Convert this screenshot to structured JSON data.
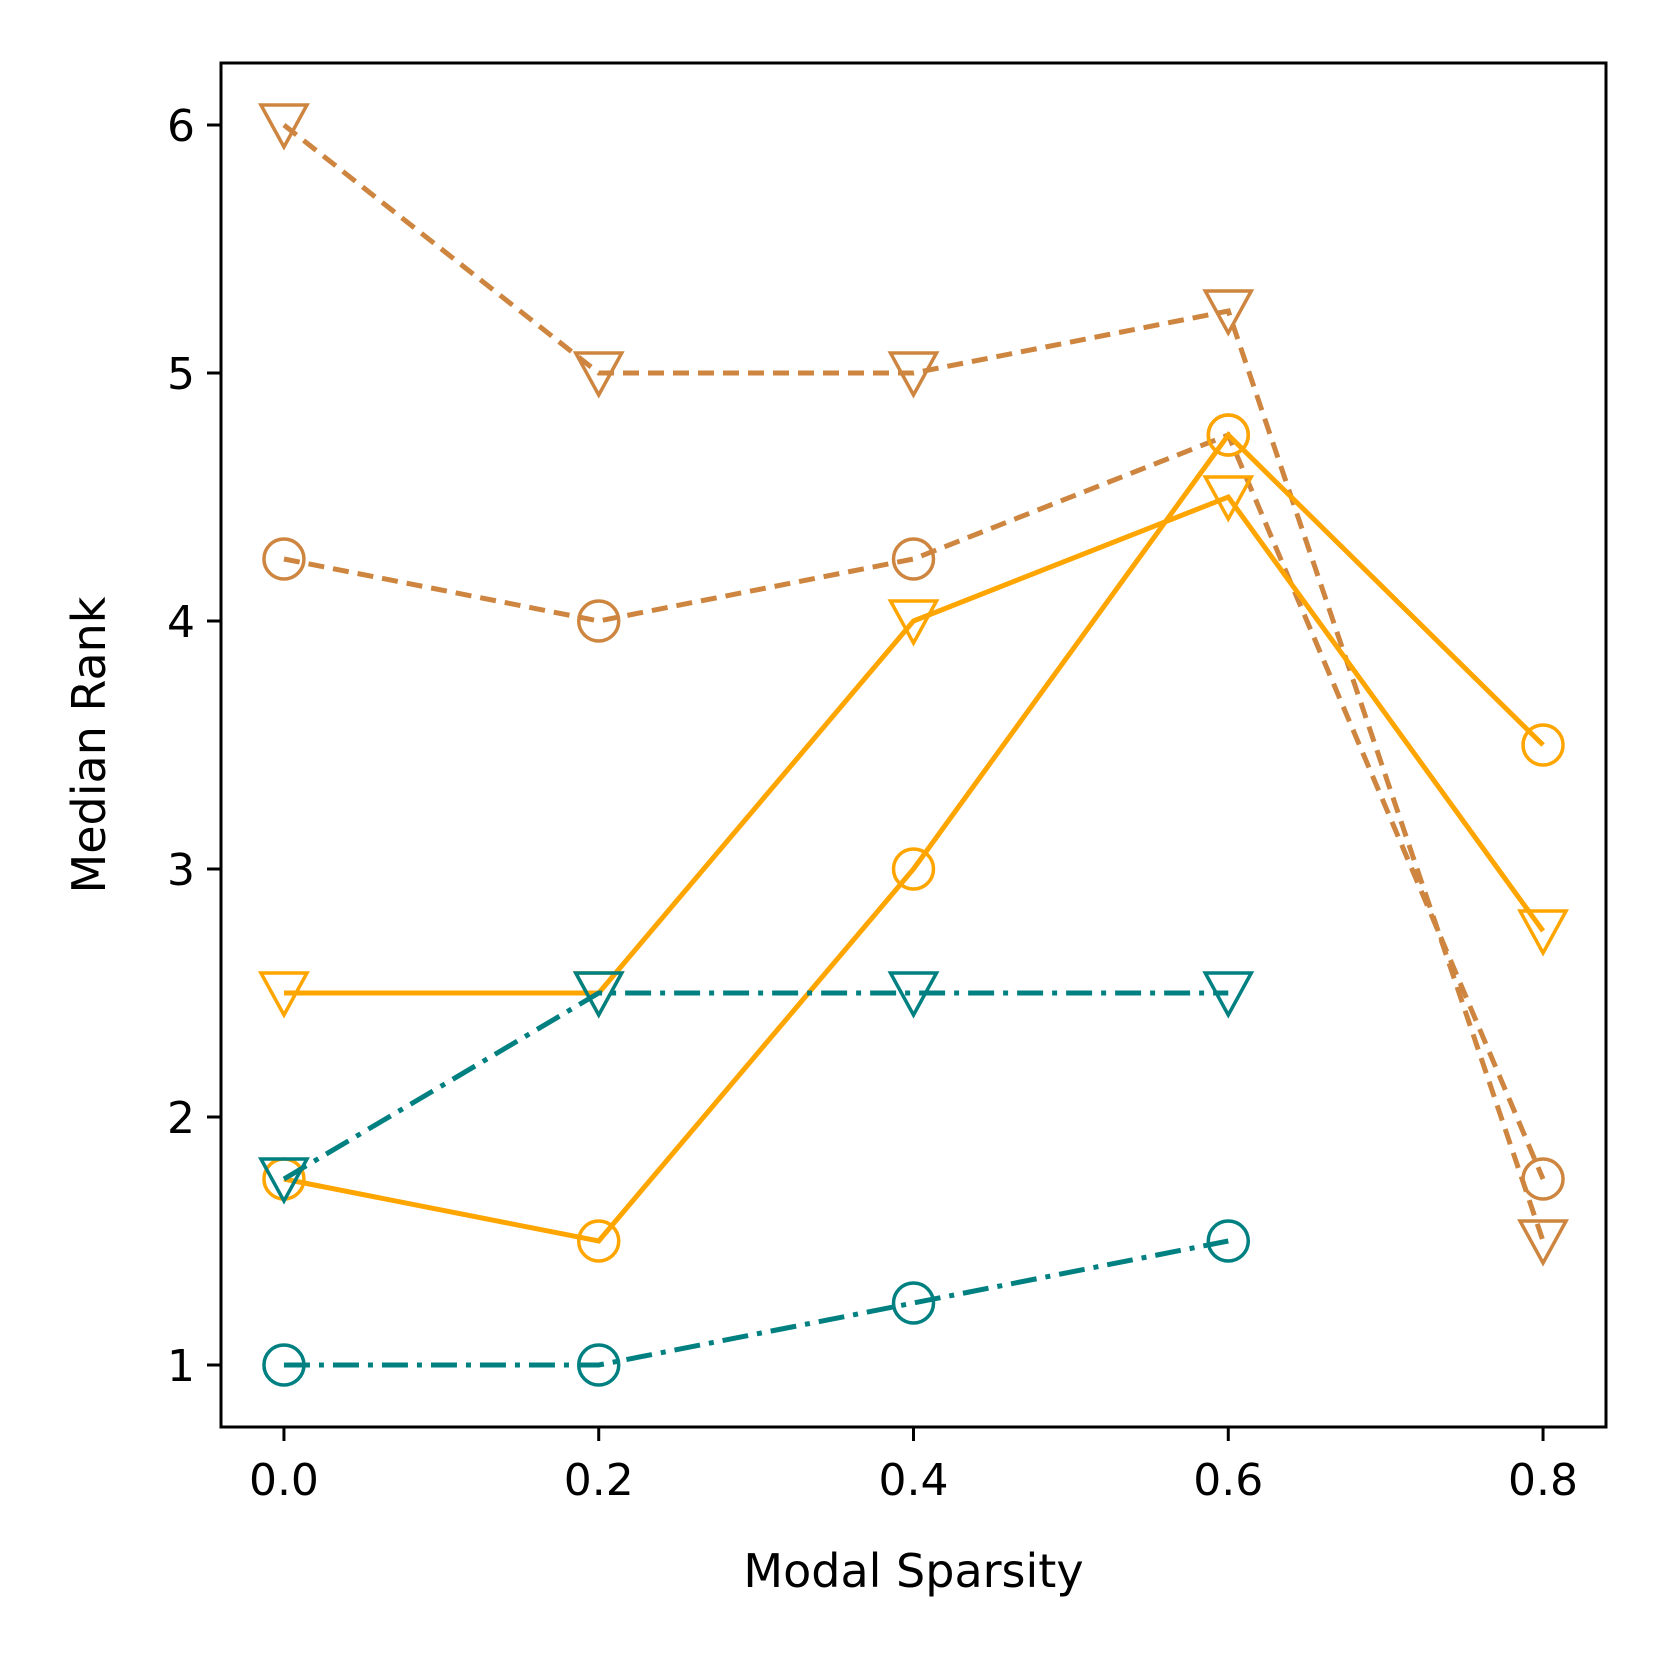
{
  "chart_data": {
    "type": "line",
    "title": "",
    "xlabel": "Modal Sparsity",
    "ylabel": "Median Rank",
    "xlim": [
      -0.04,
      0.84
    ],
    "ylim": [
      0.75,
      6.25
    ],
    "xticks": [
      0.0,
      0.2,
      0.4,
      0.6,
      0.8
    ],
    "xtick_labels": [
      "0.0",
      "0.2",
      "0.4",
      "0.6",
      "0.8"
    ],
    "yticks": [
      1,
      2,
      3,
      4,
      5,
      6
    ],
    "ytick_labels": [
      "1",
      "2",
      "3",
      "4",
      "5",
      "6"
    ],
    "grid": false,
    "legend": "none",
    "series": [
      {
        "name": "brown dashed circles",
        "color": "#CD853F",
        "linestyle": "dashed",
        "marker": "circle",
        "x": [
          0.0,
          0.2,
          0.4,
          0.6,
          0.8
        ],
        "y": [
          4.25,
          4.0,
          4.25,
          4.75,
          1.75
        ]
      },
      {
        "name": "brown dashed triangles",
        "color": "#CD853F",
        "linestyle": "dashed",
        "marker": "triangle-down",
        "x": [
          0.0,
          0.2,
          0.4,
          0.6,
          0.8
        ],
        "y": [
          6.0,
          5.0,
          5.0,
          5.25,
          1.5
        ]
      },
      {
        "name": "orange solid circles",
        "color": "#FFA500",
        "linestyle": "solid",
        "marker": "circle",
        "x": [
          0.0,
          0.2,
          0.4,
          0.6,
          0.8
        ],
        "y": [
          1.75,
          1.5,
          3.0,
          4.75,
          3.5
        ]
      },
      {
        "name": "orange solid triangles",
        "color": "#FFA500",
        "linestyle": "solid",
        "marker": "triangle-down",
        "x": [
          0.0,
          0.2,
          0.4,
          0.6,
          0.8
        ],
        "y": [
          2.5,
          2.5,
          4.0,
          4.5,
          2.75
        ]
      },
      {
        "name": "teal dash-dot circles",
        "color": "#008080",
        "linestyle": "dashdot",
        "marker": "circle",
        "x": [
          0.0,
          0.2,
          0.4,
          0.6
        ],
        "y": [
          1.0,
          1.0,
          1.25,
          1.5
        ]
      },
      {
        "name": "teal dash-dot triangles",
        "color": "#008080",
        "linestyle": "dashdot",
        "marker": "triangle-down",
        "x": [
          0.0,
          0.2,
          0.4,
          0.6
        ],
        "y": [
          1.75,
          2.5,
          2.5,
          2.5
        ]
      }
    ]
  }
}
